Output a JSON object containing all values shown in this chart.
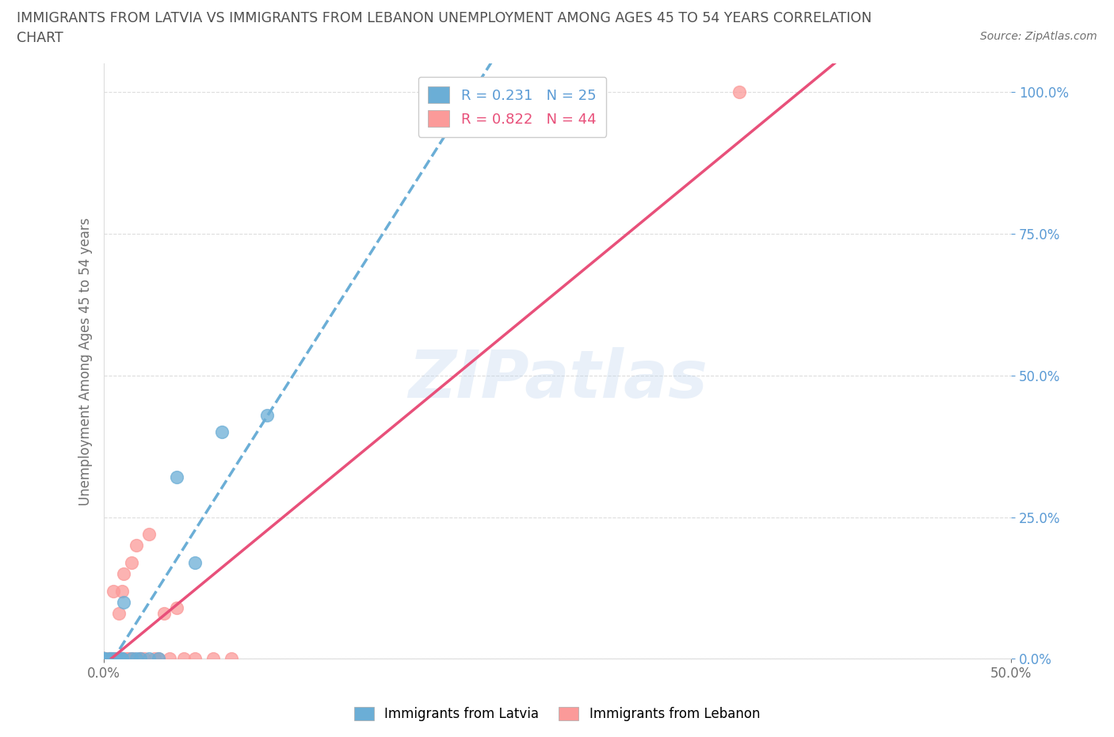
{
  "title_line1": "IMMIGRANTS FROM LATVIA VS IMMIGRANTS FROM LEBANON UNEMPLOYMENT AMONG AGES 45 TO 54 YEARS CORRELATION",
  "title_line2": "CHART",
  "source_text": "Source: ZipAtlas.com",
  "ylabel": "Unemployment Among Ages 45 to 54 years",
  "xlim": [
    0.0,
    0.5
  ],
  "ylim": [
    0.0,
    1.05
  ],
  "yticks": [
    0.0,
    0.25,
    0.5,
    0.75,
    1.0
  ],
  "xticks": [
    0.0,
    0.5
  ],
  "latvia_color": "#6baed6",
  "lebanon_color": "#fb9a99",
  "lebanon_line_color": "#e8507a",
  "latvia_R": 0.231,
  "latvia_N": 25,
  "lebanon_R": 0.822,
  "lebanon_N": 44,
  "legend_R_label_latvia": "R = 0.231   N = 25",
  "legend_R_label_lebanon": "R = 0.822   N = 44",
  "legend_label_latvia": "Immigrants from Latvia",
  "legend_label_lebanon": "Immigrants from Lebanon",
  "watermark": "ZIPatlas",
  "latvia_x": [
    0.0,
    0.0,
    0.0,
    0.0,
    0.0,
    0.0,
    0.0,
    0.0,
    0.003,
    0.004,
    0.005,
    0.007,
    0.008,
    0.01,
    0.01,
    0.011,
    0.015,
    0.018,
    0.02,
    0.025,
    0.03,
    0.04,
    0.05,
    0.065,
    0.09
  ],
  "latvia_y": [
    0.0,
    0.0,
    0.0,
    0.0,
    0.0,
    0.0,
    0.0,
    0.0,
    0.0,
    0.0,
    0.0,
    0.0,
    0.0,
    0.0,
    0.0,
    0.1,
    0.0,
    0.0,
    0.0,
    0.0,
    0.0,
    0.32,
    0.17,
    0.4,
    0.43
  ],
  "lebanon_x": [
    0.0,
    0.0,
    0.0,
    0.0,
    0.0,
    0.0,
    0.0,
    0.0,
    0.0,
    0.0,
    0.002,
    0.003,
    0.004,
    0.005,
    0.005,
    0.006,
    0.007,
    0.008,
    0.008,
    0.009,
    0.01,
    0.01,
    0.01,
    0.011,
    0.012,
    0.013,
    0.014,
    0.015,
    0.016,
    0.018,
    0.02,
    0.02,
    0.022,
    0.025,
    0.028,
    0.03,
    0.033,
    0.036,
    0.04,
    0.044,
    0.05,
    0.06,
    0.07,
    0.35
  ],
  "lebanon_y": [
    0.0,
    0.0,
    0.0,
    0.0,
    0.0,
    0.0,
    0.0,
    0.0,
    0.0,
    0.0,
    0.0,
    0.0,
    0.0,
    0.0,
    0.12,
    0.0,
    0.0,
    0.0,
    0.08,
    0.0,
    0.0,
    0.0,
    0.12,
    0.15,
    0.0,
    0.0,
    0.0,
    0.17,
    0.0,
    0.2,
    0.0,
    0.0,
    0.0,
    0.22,
    0.0,
    0.0,
    0.08,
    0.0,
    0.09,
    0.0,
    0.0,
    0.0,
    0.0,
    1.0
  ],
  "background_color": "#ffffff",
  "grid_color": "#dddddd",
  "title_color": "#505050",
  "axis_color": "#707070",
  "ytick_color": "#5b9bd5"
}
